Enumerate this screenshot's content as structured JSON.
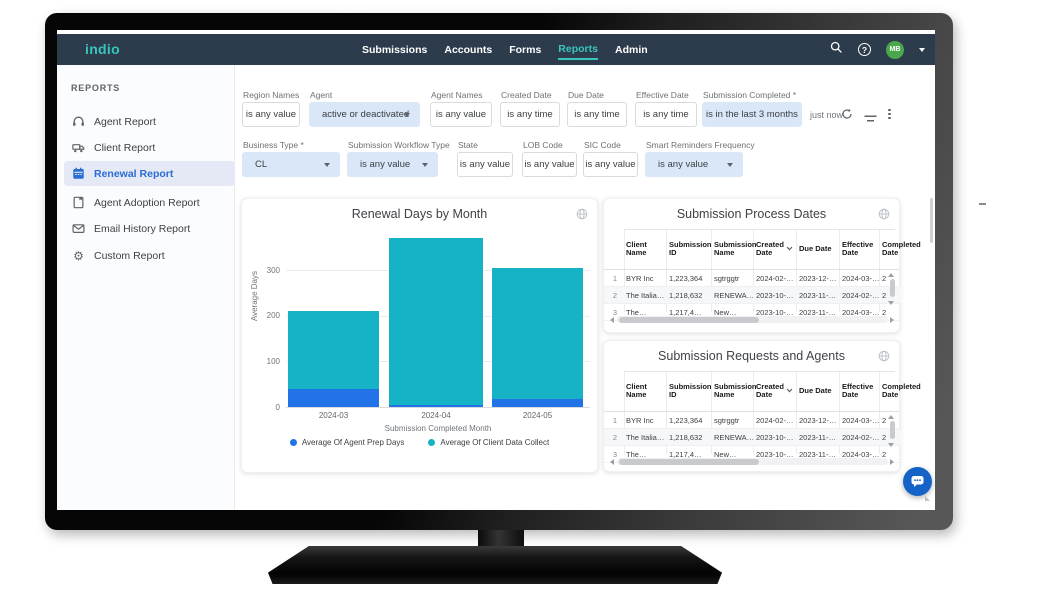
{
  "nav": {
    "logo": "indio",
    "items": [
      {
        "label": "Submissions",
        "active": false
      },
      {
        "label": "Accounts",
        "active": false
      },
      {
        "label": "Forms",
        "active": false
      },
      {
        "label": "Reports",
        "active": true
      },
      {
        "label": "Admin",
        "active": false
      }
    ],
    "icons": [
      "search-icon",
      "help-icon",
      "chevron-down-icon"
    ],
    "avatar": "MB"
  },
  "sidebar": {
    "heading": "REPORTS",
    "items": [
      {
        "label": "Agent Report",
        "icon": "headset-icon",
        "active": false
      },
      {
        "label": "Client Report",
        "icon": "truck-icon",
        "active": false
      },
      {
        "label": "Renewal Report",
        "icon": "calendar-icon",
        "active": true
      },
      {
        "label": "Agent Adoption Report",
        "icon": "notebook-icon",
        "active": false
      },
      {
        "label": "Email History Report",
        "icon": "envelope-icon",
        "active": false
      },
      {
        "label": "Custom Report",
        "icon": "gear-icon",
        "active": false
      }
    ]
  },
  "filters": {
    "row1": [
      {
        "label": "Region Names",
        "value": "is any value",
        "style": "plain",
        "dropdown": false
      },
      {
        "label": "Agent",
        "value": "active or deactivated",
        "style": "highlight",
        "dropdown": true
      },
      {
        "label": "Agent Names",
        "value": "is any value",
        "style": "plain",
        "dropdown": false
      },
      {
        "label": "Created Date",
        "value": "is any time",
        "style": "plain",
        "dropdown": false
      },
      {
        "label": "Due Date",
        "value": "is any time",
        "style": "plain",
        "dropdown": false
      },
      {
        "label": "Effective Date",
        "value": "is any time",
        "style": "plain",
        "dropdown": false
      },
      {
        "label": "Submission Completed *",
        "value": "is in the last 3 months",
        "style": "highlight-center",
        "dropdown": false
      }
    ],
    "row2": [
      {
        "label": "Business Type *",
        "value": "CL",
        "style": "highlight",
        "dropdown": true
      },
      {
        "label": "Submission Workflow Type",
        "value": "is any value",
        "style": "highlight",
        "dropdown": true
      },
      {
        "label": "State",
        "value": "is any value",
        "style": "plain",
        "dropdown": false
      },
      {
        "label": "LOB Code",
        "value": "is any value",
        "style": "plain",
        "dropdown": false
      },
      {
        "label": "SIC Code",
        "value": "is any value",
        "style": "plain",
        "dropdown": false
      },
      {
        "label": "Smart Reminders Frequency",
        "value": "is any value",
        "style": "highlight",
        "dropdown": true
      }
    ],
    "updated": "just now",
    "toolbar_icons": [
      "refresh-icon",
      "filter-icon",
      "kebab-icon"
    ]
  },
  "chart_data": {
    "type": "bar",
    "stacked": true,
    "title": "Renewal Days by Month",
    "categories": [
      "2024-03",
      "2024-04",
      "2024-05"
    ],
    "series": [
      {
        "name": "Average Of Agent Prep Days",
        "color": "#2273e8",
        "values": [
          40,
          5,
          18
        ]
      },
      {
        "name": "Average Of Client Data Collect",
        "color": "#16b2c5",
        "values": [
          170,
          365,
          287
        ]
      }
    ],
    "xlabel": "Submission Completed Month",
    "ylabel": "Average Days",
    "ylim": [
      0,
      380
    ],
    "yticks": [
      0,
      100,
      200,
      300
    ],
    "grid": true,
    "legend_position": "bottom"
  },
  "tables": [
    {
      "title": "Submission Process Dates",
      "columns": [
        "Client Name",
        "Submission ID",
        "Submission Name",
        "Created Date",
        "Due Date",
        "Effective Date",
        "Completed Date"
      ],
      "sort_column": "Created Date",
      "sort_direction": "desc",
      "rows": [
        [
          "1",
          "BYR Inc",
          "1,223,364",
          "sgtrggtr",
          "2024-02-…",
          "2023-12-…",
          "2024-03-…",
          "2"
        ],
        [
          "2",
          "The Italia…",
          "1,218,632",
          "RENEWA…",
          "2023-10-…",
          "2023-11-…",
          "2024-02-…",
          "2"
        ],
        [
          "3",
          "The…",
          "1,217,4…",
          "New…",
          "2023-10-…",
          "2023-11-…",
          "2024-03-…",
          "2"
        ]
      ]
    },
    {
      "title": "Submission Requests and Agents",
      "columns": [
        "Client Name",
        "Submission ID",
        "Submission Name",
        "Created Date",
        "Due Date",
        "Effective Date",
        "Completed Date"
      ],
      "sort_column": "Created Date",
      "sort_direction": "desc",
      "rows": [
        [
          "1",
          "BYR Inc",
          "1,223,364",
          "sgtrggtr",
          "2024-02-…",
          "2023-12-…",
          "2024-03-…",
          "2"
        ],
        [
          "2",
          "The Italia…",
          "1,218,632",
          "RENEWA…",
          "2023-10-…",
          "2023-11-…",
          "2024-02-…",
          "2"
        ],
        [
          "3",
          "The…",
          "1,217,4…",
          "New…",
          "2023-10-…",
          "2023-11-…",
          "2024-03-…",
          "2"
        ]
      ]
    }
  ],
  "chat": {
    "icon": "chat-bubble-icon"
  },
  "colors": {
    "accent_teal": "#38c5bc",
    "navbar_bg": "#2d3c4d",
    "selected_blue": "#2a6bd4",
    "chip_highlight": "#d9e7f9",
    "avatar_green": "#49a84c",
    "chart_blue": "#2273e8",
    "chart_teal": "#16b2c5",
    "chat_blue": "#1663c8"
  }
}
